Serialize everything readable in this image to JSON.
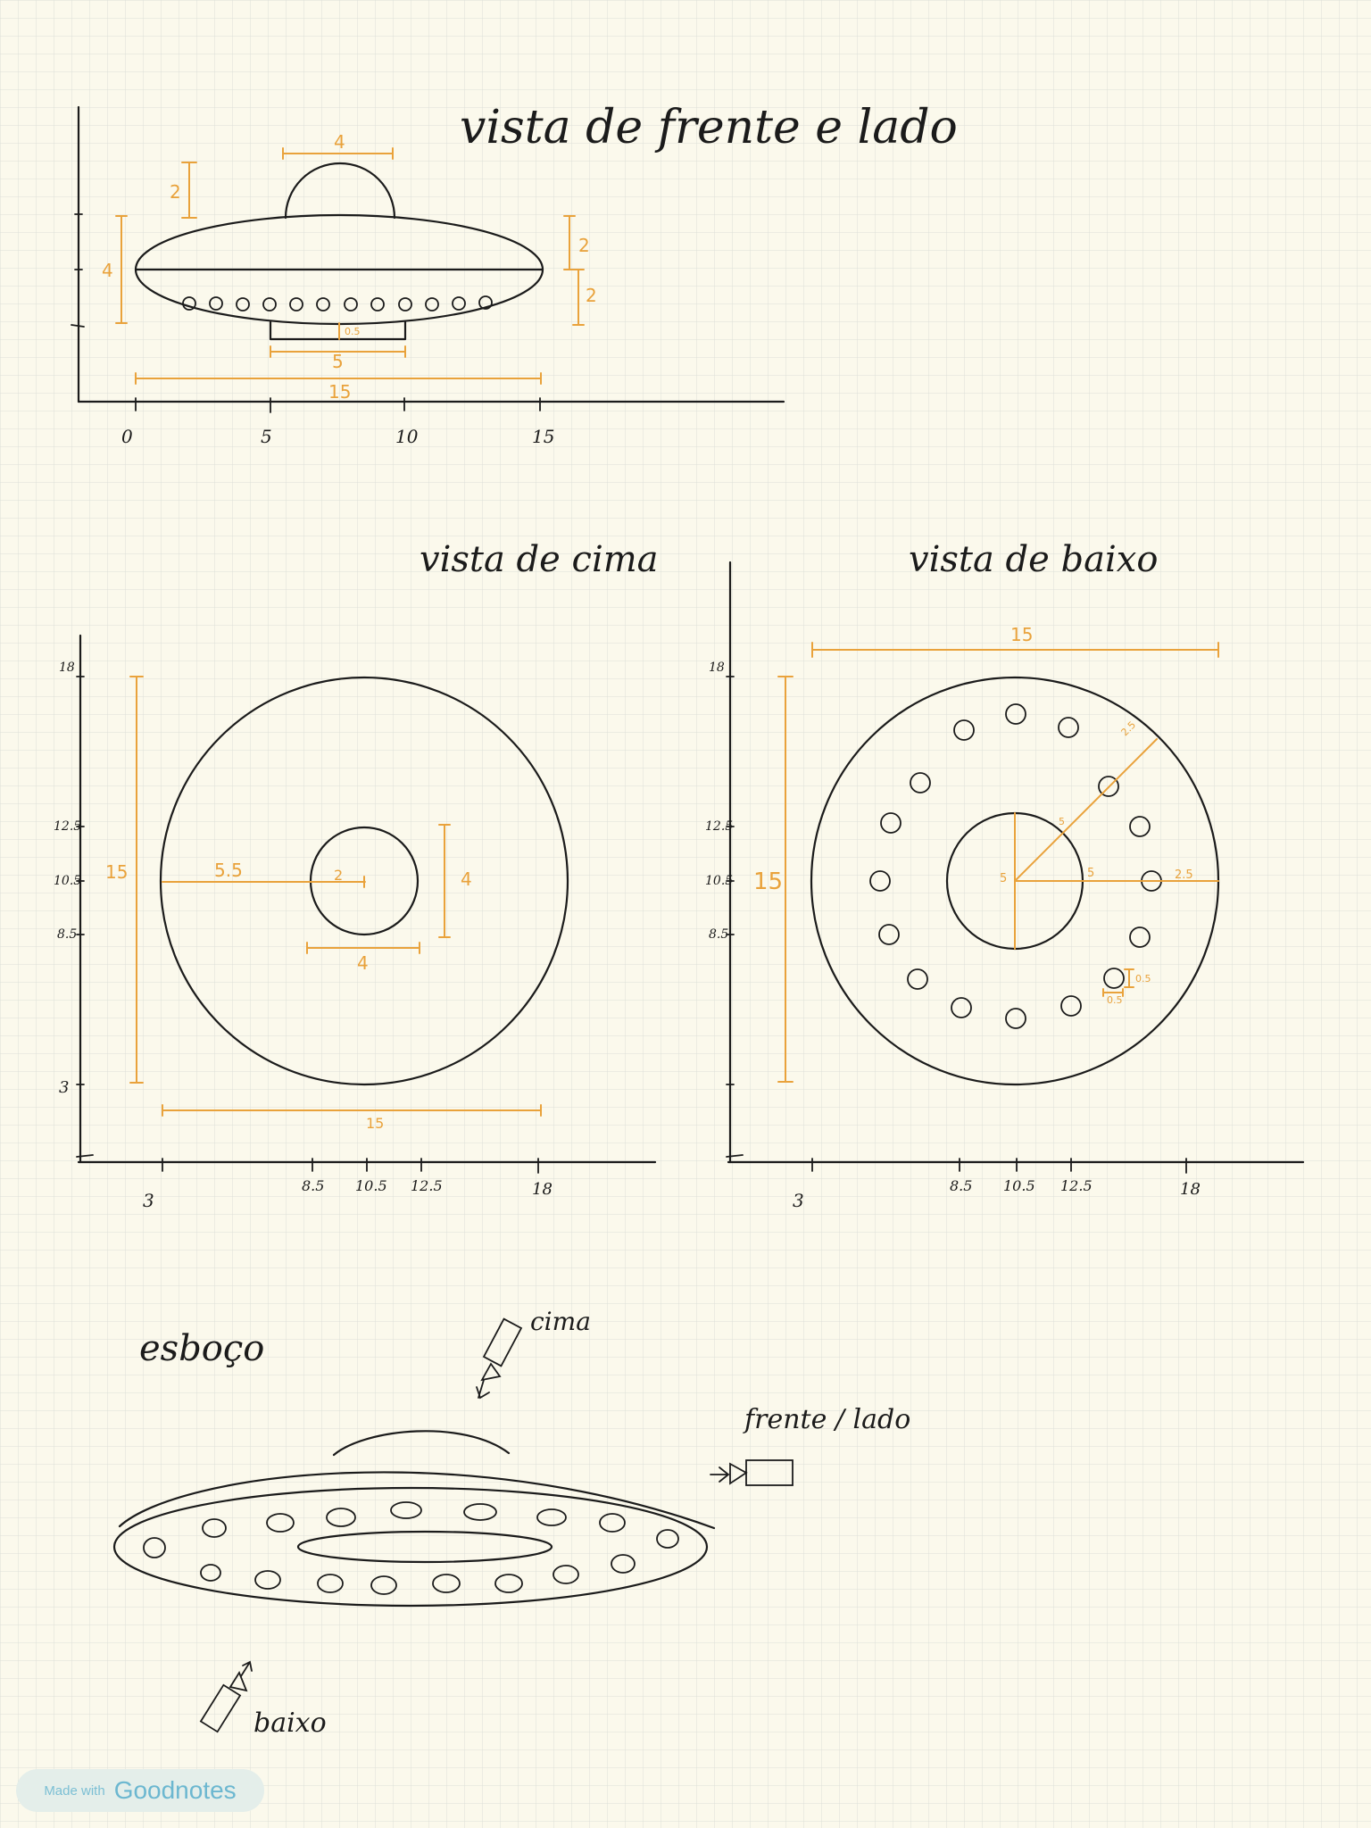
{
  "views": {
    "front_title": "vista de frente e lado",
    "top_title": "vista de cima",
    "bottom_title": "vista de baixo",
    "sketch_title": "esboço"
  },
  "front_axis_ticks": [
    "0",
    "5",
    "10",
    "15"
  ],
  "front_dims": {
    "dome_width": "4",
    "dome_height": "2",
    "body_height_left": "4",
    "body_upper_right": "2",
    "body_lower_right": "2",
    "base_gap": "0.5",
    "base_width": "5",
    "total_width": "15"
  },
  "top_view": {
    "y_ticks": [
      "18",
      "12.5",
      "10.5",
      "8.5",
      "3"
    ],
    "x_ticks": [
      "3",
      "8.5",
      "10.5",
      "12.5",
      "18"
    ],
    "dims": {
      "height": "15",
      "outer_radius": "5.5",
      "inner_radius": "2",
      "inner_height": "4",
      "inner_width": "4",
      "width": "15"
    }
  },
  "bottom_view": {
    "y_ticks": [
      "18",
      "12.5",
      "10.5",
      "8.5"
    ],
    "x_ticks": [
      "3",
      "8.5",
      "10.5",
      "12.5",
      "18"
    ],
    "dims": {
      "width": "15",
      "height": "15",
      "diag_outer": "2.5",
      "diag_inner": "5",
      "center_left": "5",
      "center_right": "5",
      "right_seg": "2.5",
      "hole_h": "0.5",
      "hole_w": "0.5"
    }
  },
  "camera_labels": {
    "top": "cima",
    "front": "frente / lado",
    "bottom": "baixo"
  },
  "badge": {
    "made_with": "Made with",
    "brand": "Goodnotes"
  },
  "colors": {
    "paper": "#fbf9ec",
    "grid": "#d9dcd4",
    "ink": "#1b1b1b",
    "dimension": "#e9a23b"
  }
}
